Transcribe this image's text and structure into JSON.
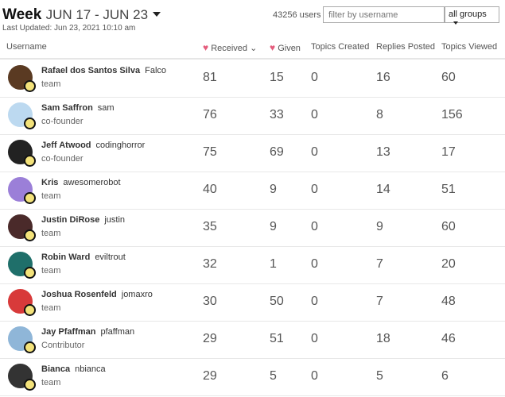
{
  "header": {
    "period": "Week",
    "range": "JUN 17 - JUN 23",
    "last_updated": "Last Updated: Jun 23, 2021 10:10 am",
    "user_count": "43256 users",
    "filter_placeholder": "filter by username",
    "group_select": "all groups"
  },
  "colors": {
    "heart": "#e45c7c"
  },
  "columns": [
    "Username",
    "Received",
    "Given",
    "Topics Created",
    "Replies Posted",
    "Topics Viewed"
  ],
  "rows": [
    {
      "name": "Rafael dos Santos Silva",
      "username": "Falco",
      "group": "team",
      "received": "81",
      "given": "15",
      "created": "0",
      "replies": "16",
      "viewed": "60",
      "avatar": "#5a3a22"
    },
    {
      "name": "Sam Saffron",
      "username": "sam",
      "group": "co-founder",
      "received": "76",
      "given": "33",
      "created": "0",
      "replies": "8",
      "viewed": "156",
      "avatar": "#bcd9f0"
    },
    {
      "name": "Jeff Atwood",
      "username": "codinghorror",
      "group": "co-founder",
      "received": "75",
      "given": "69",
      "created": "0",
      "replies": "13",
      "viewed": "17",
      "avatar": "#222222"
    },
    {
      "name": "Kris",
      "username": "awesomerobot",
      "group": "team",
      "received": "40",
      "given": "9",
      "created": "0",
      "replies": "14",
      "viewed": "51",
      "avatar": "#9b7fd8"
    },
    {
      "name": "Justin DiRose",
      "username": "justin",
      "group": "team",
      "received": "35",
      "given": "9",
      "created": "0",
      "replies": "9",
      "viewed": "60",
      "avatar": "#4a2a2a"
    },
    {
      "name": "Robin Ward",
      "username": "eviltrout",
      "group": "team",
      "received": "32",
      "given": "1",
      "created": "0",
      "replies": "7",
      "viewed": "20",
      "avatar": "#1f6f6a"
    },
    {
      "name": "Joshua Rosenfeld",
      "username": "jomaxro",
      "group": "team",
      "received": "30",
      "given": "50",
      "created": "0",
      "replies": "7",
      "viewed": "48",
      "avatar": "#d83a3a"
    },
    {
      "name": "Jay Pfaffman",
      "username": "pfaffman",
      "group": "Contributor",
      "received": "29",
      "given": "51",
      "created": "0",
      "replies": "18",
      "viewed": "46",
      "avatar": "#8fb6d8"
    },
    {
      "name": "Bianca",
      "username": "nbianca",
      "group": "team",
      "received": "29",
      "given": "5",
      "created": "0",
      "replies": "5",
      "viewed": "6",
      "avatar": "#333333"
    }
  ]
}
